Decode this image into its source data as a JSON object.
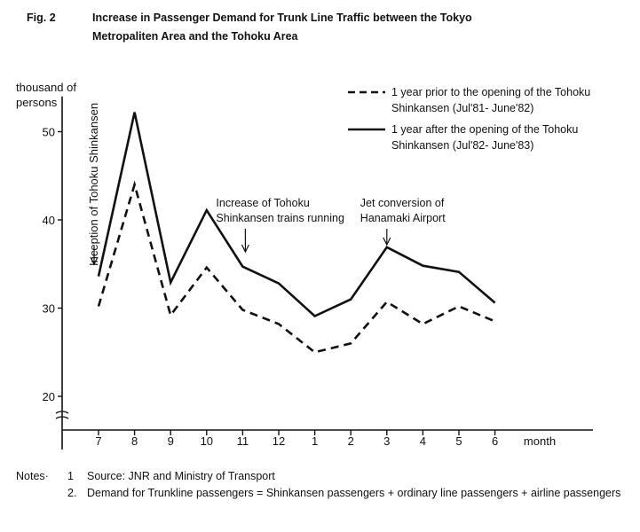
{
  "figure": {
    "label": "Fig. 2",
    "title_line1": "Increase in Passenger Demand for Trunk Line Traffic between the Tokyo",
    "title_line2": "Metropaliten Area and the Tohoku Area"
  },
  "chart_data": {
    "type": "line",
    "ylabel_line1": "thousand of",
    "ylabel_line2": "persons",
    "xlabel": "month",
    "ylim": [
      19,
      54
    ],
    "y_break": true,
    "yticks": [
      20,
      30,
      40,
      50
    ],
    "categories": [
      "7",
      "8",
      "9",
      "10",
      "11",
      "12",
      "1",
      "2",
      "3",
      "4",
      "5",
      "6"
    ],
    "series": [
      {
        "legend_line1": "1 year prior to the opening of the Tohoku",
        "legend_line2": "Shinkansen (Jul'81- June'82)",
        "style": "dashed",
        "values": [
          30.2,
          44.0,
          29.2,
          34.6,
          29.8,
          28.2,
          25.0,
          26.0,
          30.7,
          28.2,
          30.2,
          28.5
        ]
      },
      {
        "legend_line1": "1 year after the opening of the Tohoku",
        "legend_line2": "Shinkansen (Jul'82- June'83)",
        "style": "solid",
        "values": [
          33.6,
          52.2,
          32.9,
          41.1,
          34.7,
          32.8,
          29.1,
          31.0,
          36.9,
          34.8,
          34.1,
          30.6
        ]
      }
    ],
    "annotations": [
      {
        "text": "Inception of Tohoku Shinkansen",
        "x_index": 0,
        "style": "vertical-left-arrow"
      },
      {
        "line1": "Increase of Tohoku",
        "line2": "Shinkansen trains running",
        "x_index": 4,
        "style": "down-arrow"
      },
      {
        "line1": "Jet conversion of",
        "line2": "Hanamaki Airport",
        "x_index": 8,
        "style": "down-arrow"
      }
    ],
    "legend_position": "top-right",
    "grid": false,
    "line_color": "#111111"
  },
  "notes": {
    "heading": "Notes·",
    "items": [
      {
        "num": "1",
        "text": "Source: JNR and Ministry of Transport"
      },
      {
        "num": "2.",
        "text": "Demand for Trunkline passengers = Shinkansen passengers + ordinary line passengers + airline passengers"
      }
    ]
  }
}
